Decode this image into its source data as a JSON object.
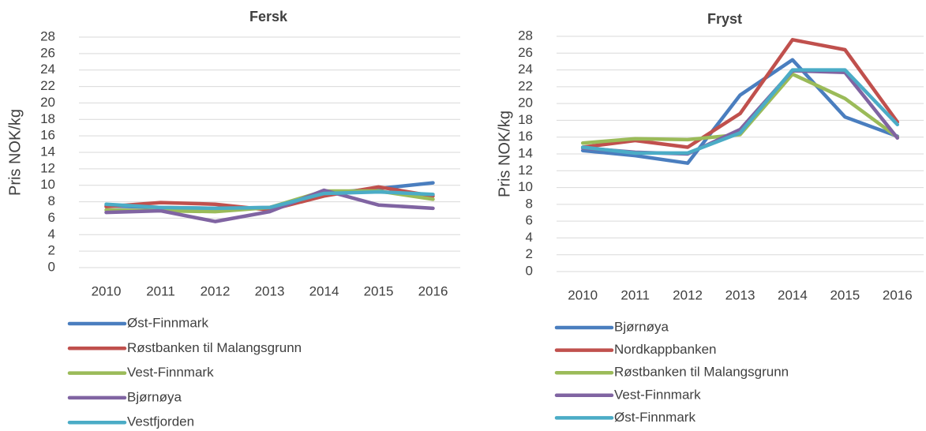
{
  "chart_data": [
    {
      "type": "line",
      "title": "Fersk",
      "y_label": "Pris NOK/kg",
      "categories": [
        "2010",
        "2011",
        "2012",
        "2013",
        "2014",
        "2015",
        "2016"
      ],
      "ylim": [
        0,
        28
      ],
      "yticks": [
        0,
        2,
        4,
        6,
        8,
        10,
        12,
        14,
        16,
        18,
        20,
        22,
        24,
        26,
        28
      ],
      "grid": true,
      "series": [
        {
          "name": "Øst-Finnmark",
          "color": "#4a7ebf",
          "values": [
            7.5,
            7.3,
            7.2,
            7.3,
            9.0,
            9.6,
            10.3
          ]
        },
        {
          "name": "Røstbanken til Malangsgrunn",
          "color": "#c0504d",
          "values": [
            7.4,
            7.9,
            7.7,
            7.0,
            8.7,
            9.8,
            8.7
          ]
        },
        {
          "name": "Vest-Finnmark",
          "color": "#9bbb59",
          "values": [
            7.0,
            6.9,
            6.8,
            7.3,
            9.3,
            9.3,
            8.3
          ]
        },
        {
          "name": "Bjørnøya",
          "color": "#8064a2",
          "values": [
            6.7,
            6.9,
            5.6,
            6.8,
            9.4,
            7.6,
            7.2
          ]
        },
        {
          "name": "Vestfjorden",
          "color": "#4bacc6",
          "values": [
            7.7,
            7.3,
            7.2,
            7.3,
            9.0,
            9.2,
            8.9
          ]
        }
      ]
    },
    {
      "type": "line",
      "title": "Fryst",
      "y_label": "Pris NOK/kg",
      "categories": [
        "2010",
        "2011",
        "2012",
        "2013",
        "2014",
        "2015",
        "2016"
      ],
      "ylim": [
        0,
        28
      ],
      "yticks": [
        0,
        2,
        4,
        6,
        8,
        10,
        12,
        14,
        16,
        18,
        20,
        22,
        24,
        26,
        28
      ],
      "grid": true,
      "series": [
        {
          "name": "Bjørnøya",
          "color": "#4a7ebf",
          "values": [
            14.4,
            13.8,
            12.9,
            21.0,
            25.2,
            18.4,
            16.1
          ]
        },
        {
          "name": "Nordkappbanken",
          "color": "#c0504d",
          "values": [
            14.8,
            15.6,
            14.8,
            18.8,
            27.6,
            26.4,
            17.8
          ]
        },
        {
          "name": "Røstbanken til Malangsgrunn",
          "color": "#9bbb59",
          "values": [
            15.3,
            15.8,
            15.7,
            16.3,
            23.5,
            20.6,
            16.0
          ]
        },
        {
          "name": "Vest-Finnmark",
          "color": "#8064a2",
          "values": [
            14.7,
            14.2,
            14.0,
            16.9,
            23.9,
            23.7,
            15.9
          ]
        },
        {
          "name": "Øst-Finnmark",
          "color": "#4bacc6",
          "values": [
            14.8,
            14.1,
            14.1,
            16.5,
            24.0,
            24.0,
            17.5
          ]
        }
      ]
    }
  ]
}
